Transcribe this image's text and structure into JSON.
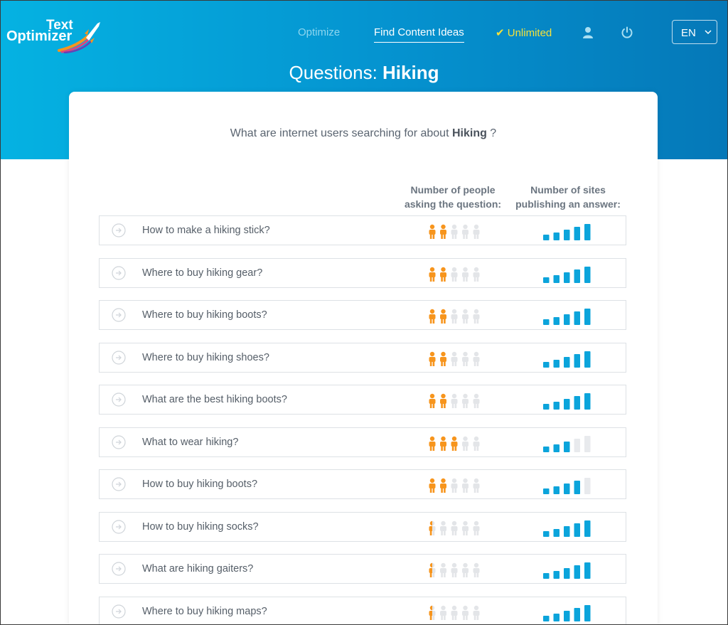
{
  "header": {
    "logo": {
      "line1": "Text",
      "line2": "Optimizer"
    },
    "nav": {
      "optimize": "Optimize",
      "ideas": "Find Content Ideas",
      "unlimited": "✔ Unlimited"
    },
    "icons": [
      "user-icon",
      "power-icon"
    ],
    "language": "EN"
  },
  "page": {
    "title_prefix": "Questions: ",
    "title_topic": "Hiking"
  },
  "subtitle": {
    "prefix": "What are internet users searching for about ",
    "topic": "Hiking",
    "suffix": " ?"
  },
  "columns": {
    "people": [
      "Number of people",
      "asking the question:"
    ],
    "sites": [
      "Number of sites",
      "publishing an answer:"
    ]
  },
  "colors": {
    "accent": "#05a6dc",
    "people_active": "#f7951d",
    "inactive": "#e3e5e8",
    "bars": "#0ba4db"
  },
  "rows": [
    {
      "question": "How to make a hiking stick?",
      "people": 2,
      "sites": 5
    },
    {
      "question": "Where to buy hiking gear?",
      "people": 2,
      "sites": 5
    },
    {
      "question": "Where to buy hiking boots?",
      "people": 2,
      "sites": 5
    },
    {
      "question": "Where to buy hiking shoes?",
      "people": 2,
      "sites": 5
    },
    {
      "question": "What are the best hiking boots?",
      "people": 2,
      "sites": 5
    },
    {
      "question": "What to wear hiking?",
      "people": 3,
      "sites": 3
    },
    {
      "question": "How to buy hiking boots?",
      "people": 2,
      "sites": 4
    },
    {
      "question": "How to buy hiking socks?",
      "people": 0.5,
      "sites": 5
    },
    {
      "question": "What are hiking gaiters?",
      "people": 0.5,
      "sites": 5
    },
    {
      "question": "Where to buy hiking maps?",
      "people": 0.5,
      "sites": 5
    }
  ]
}
